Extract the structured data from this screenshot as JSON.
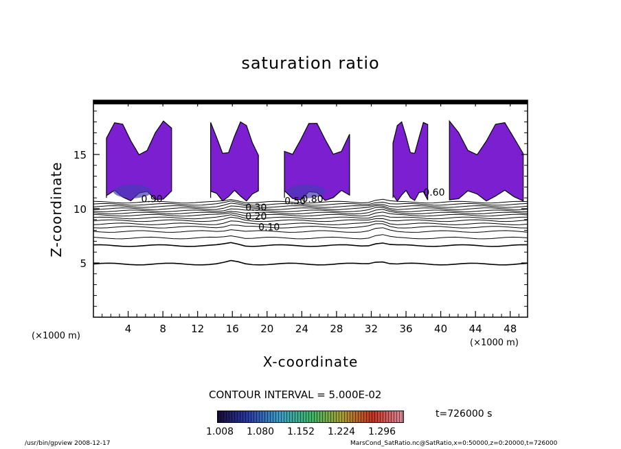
{
  "chart_data": {
    "type": "contour",
    "title": "saturation ratio",
    "xlabel": "X-coordinate",
    "ylabel": "Z-coordinate",
    "x_unit_note": "(×1000 m)",
    "xlim": [
      0,
      50
    ],
    "ylim": [
      0,
      20
    ],
    "x_ticks": [
      "4",
      "8",
      "12",
      "16",
      "20",
      "24",
      "28",
      "32",
      "36",
      "40",
      "44",
      "48"
    ],
    "y_ticks": [
      "5",
      "10",
      "15"
    ],
    "contour_interval": "CONTOUR INTERVAL = 5.000E-02",
    "contour_labels": [
      "0.10",
      "0.20",
      "0.30",
      "0.50",
      "0.90",
      "0.60",
      "0.80"
    ],
    "colorbar": {
      "labels": [
        "1.008",
        "1.080",
        "1.152",
        "1.224",
        "1.296"
      ],
      "colors": [
        "#1a0a3c",
        "#2a3ca8",
        "#3aa0c8",
        "#3ab86a",
        "#a8a030",
        "#c83020",
        "#e08c9c"
      ]
    },
    "fill_color": "#7b1fd0",
    "time_label": "t=726000 s",
    "footer_left": "/usr/bin/gpview   2008-12-17",
    "footer_right": "MarsCond_SatRatio.nc@SatRatio,x=0:50000,z=0:20000,t=726000"
  }
}
